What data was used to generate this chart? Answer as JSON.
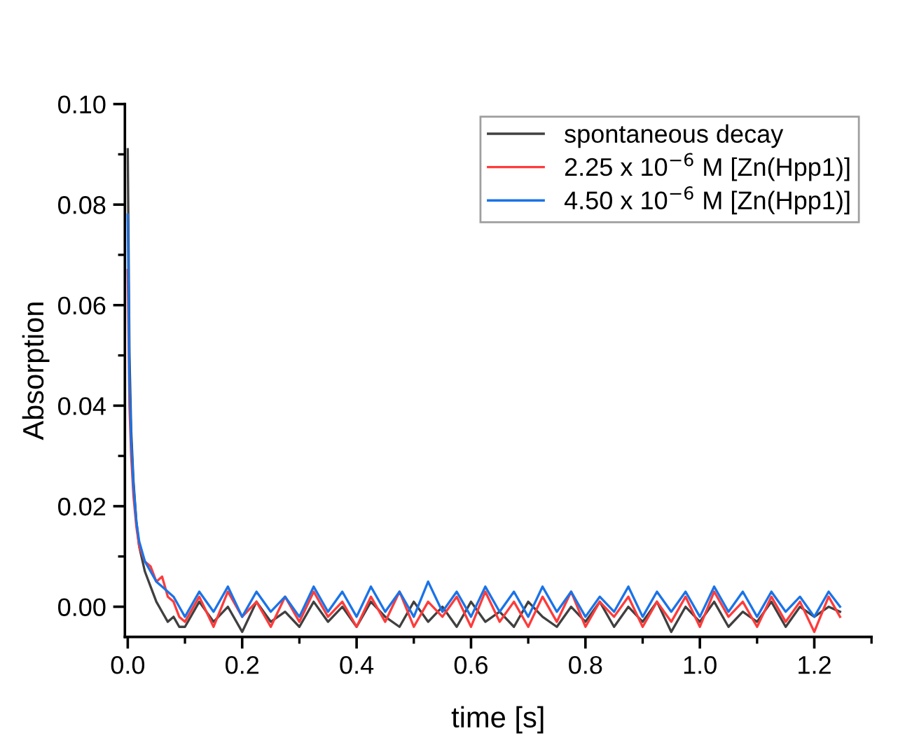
{
  "chart_data": {
    "type": "line",
    "xlabel": "time [s]",
    "ylabel": "Absorption",
    "x": [
      0,
      0.003,
      0.006,
      0.01,
      0.015,
      0.02,
      0.03,
      0.04,
      0.05,
      0.06,
      0.07,
      0.08,
      0.09,
      0.1,
      0.125,
      0.15,
      0.175,
      0.2,
      0.225,
      0.25,
      0.275,
      0.3,
      0.325,
      0.35,
      0.375,
      0.4,
      0.425,
      0.45,
      0.475,
      0.5,
      0.525,
      0.55,
      0.575,
      0.6,
      0.625,
      0.65,
      0.675,
      0.7,
      0.725,
      0.75,
      0.775,
      0.8,
      0.825,
      0.85,
      0.875,
      0.9,
      0.925,
      0.95,
      0.975,
      1.0,
      1.025,
      1.05,
      1.075,
      1.1,
      1.125,
      1.15,
      1.175,
      1.2,
      1.225,
      1.245
    ],
    "series": [
      {
        "name": "spontaneous decay",
        "color": "#404040",
        "values": [
          0.091,
          0.05,
          0.035,
          0.025,
          0.017,
          0.012,
          0.007,
          0.004,
          0.001,
          -0.001,
          -0.003,
          -0.002,
          -0.004,
          -0.004,
          0.001,
          -0.003,
          0.0,
          -0.005,
          0.001,
          -0.003,
          -0.001,
          -0.004,
          0.001,
          -0.003,
          0.0,
          -0.004,
          0.001,
          -0.002,
          -0.004,
          0.001,
          -0.003,
          0.0,
          -0.004,
          0.001,
          -0.003,
          -0.001,
          -0.004,
          0.001,
          -0.002,
          -0.004,
          0.0,
          -0.003,
          0.001,
          -0.004,
          0.0,
          -0.003,
          0.001,
          -0.005,
          0.0,
          -0.003,
          0.001,
          -0.004,
          -0.001,
          -0.003,
          0.001,
          -0.004,
          0.0,
          -0.002,
          0.0,
          -0.001
        ]
      },
      {
        "name": "2.25 x 10$^{−6}$ M [Zn(Hpp1)]",
        "color": "#ff3b3b",
        "values": [
          0.067,
          0.04,
          0.03,
          0.022,
          0.016,
          0.012,
          0.009,
          0.008,
          0.005,
          0.006,
          0.002,
          0.001,
          -0.002,
          -0.003,
          0.002,
          -0.004,
          0.003,
          -0.002,
          0.001,
          -0.004,
          0.002,
          -0.003,
          0.003,
          -0.002,
          0.001,
          -0.004,
          0.002,
          -0.003,
          0.003,
          -0.004,
          0.001,
          -0.002,
          0.002,
          -0.004,
          0.003,
          -0.003,
          0.001,
          -0.004,
          0.002,
          -0.003,
          0.003,
          -0.004,
          0.001,
          -0.002,
          0.002,
          -0.004,
          0.001,
          -0.003,
          0.002,
          -0.004,
          0.003,
          -0.002,
          0.001,
          -0.004,
          0.002,
          -0.003,
          0.001,
          -0.005,
          0.002,
          -0.002
        ]
      },
      {
        "name": "4.50 x 10$^{−6}$ M [Zn(Hpp1)]",
        "color": "#1a73e8",
        "values": [
          0.078,
          0.045,
          0.033,
          0.024,
          0.017,
          0.013,
          0.009,
          0.007,
          0.005,
          0.004,
          0.003,
          0.002,
          0.0,
          -0.002,
          0.003,
          -0.001,
          0.004,
          -0.002,
          0.003,
          -0.001,
          0.002,
          -0.002,
          0.004,
          -0.001,
          0.003,
          -0.002,
          0.004,
          -0.001,
          0.003,
          -0.002,
          0.005,
          -0.001,
          0.003,
          -0.002,
          0.004,
          -0.001,
          0.003,
          -0.002,
          0.004,
          -0.001,
          0.003,
          -0.002,
          0.002,
          -0.001,
          0.004,
          -0.002,
          0.003,
          -0.001,
          0.003,
          -0.002,
          0.004,
          -0.001,
          0.003,
          -0.002,
          0.003,
          -0.001,
          0.002,
          -0.002,
          0.003,
          0.0
        ]
      }
    ],
    "xlim": [
      -0.005,
      1.3
    ],
    "ylim": [
      -0.006,
      0.1
    ],
    "xticks": [
      {
        "value": 0,
        "label": "0.0"
      },
      0.2,
      0.4,
      0.6,
      0.8,
      {
        "value": 1,
        "label": "1.0"
      },
      1.2
    ],
    "yticks": [
      {
        "value": 0,
        "label": "0.00"
      },
      0.02,
      0.04,
      0.06,
      0.08,
      {
        "value": 0.1,
        "label": "0.10"
      }
    ],
    "grid": false,
    "legend": "top right",
    "marker": "none",
    "line_style": "solid"
  }
}
